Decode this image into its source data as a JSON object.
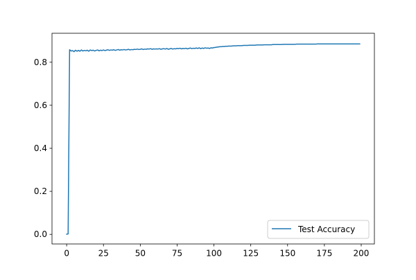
{
  "chart_data": {
    "type": "line",
    "title": "",
    "xlabel": "",
    "ylabel": "",
    "xlim": [
      -9.95,
      208.95
    ],
    "ylim": [
      -0.0445,
      0.9345
    ],
    "xticks": [
      0,
      25,
      50,
      75,
      100,
      125,
      150,
      175,
      200
    ],
    "yticks": [
      0.0,
      0.2,
      0.4,
      0.6,
      0.8
    ],
    "xtick_labels": [
      "0",
      "25",
      "50",
      "75",
      "100",
      "125",
      "150",
      "175",
      "200"
    ],
    "ytick_labels": [
      "0.0",
      "0.2",
      "0.4",
      "0.6",
      "0.8"
    ],
    "grid": false,
    "legend": {
      "position": "lower right",
      "entries": [
        "Test Accuracy"
      ]
    },
    "series": [
      {
        "name": "Test Accuracy",
        "color": "#1f77b4",
        "x": [
          0,
          1,
          2,
          3,
          4,
          5,
          6,
          7,
          8,
          9,
          10,
          11,
          12,
          13,
          14,
          15,
          16,
          17,
          18,
          19,
          20,
          21,
          22,
          23,
          24,
          25,
          26,
          27,
          28,
          29,
          30,
          31,
          32,
          33,
          34,
          35,
          36,
          37,
          38,
          39,
          40,
          41,
          42,
          43,
          44,
          45,
          46,
          47,
          48,
          49,
          50,
          51,
          52,
          53,
          54,
          55,
          56,
          57,
          58,
          59,
          60,
          61,
          62,
          63,
          64,
          65,
          66,
          67,
          68,
          69,
          70,
          71,
          72,
          73,
          74,
          75,
          76,
          77,
          78,
          79,
          80,
          81,
          82,
          83,
          84,
          85,
          86,
          87,
          88,
          89,
          90,
          91,
          92,
          93,
          94,
          95,
          96,
          97,
          98,
          99,
          100,
          101,
          102,
          103,
          104,
          105,
          106,
          107,
          108,
          109,
          110,
          111,
          112,
          113,
          114,
          115,
          116,
          117,
          118,
          119,
          120,
          121,
          122,
          123,
          124,
          125,
          126,
          127,
          128,
          129,
          130,
          131,
          132,
          133,
          134,
          135,
          136,
          137,
          138,
          139,
          140,
          141,
          142,
          143,
          144,
          145,
          146,
          147,
          148,
          149,
          150,
          151,
          152,
          153,
          154,
          155,
          156,
          157,
          158,
          159,
          160,
          161,
          162,
          163,
          164,
          165,
          166,
          167,
          168,
          169,
          170,
          171,
          172,
          173,
          174,
          175,
          176,
          177,
          178,
          179,
          180,
          181,
          182,
          183,
          184,
          185,
          186,
          187,
          188,
          189,
          190,
          191,
          192,
          193,
          194,
          195,
          196,
          197,
          198,
          199
        ],
        "y": [
          0.001,
          0.002,
          0.858,
          0.852,
          0.854,
          0.849,
          0.856,
          0.851,
          0.855,
          0.851,
          0.857,
          0.852,
          0.855,
          0.853,
          0.856,
          0.851,
          0.857,
          0.854,
          0.856,
          0.852,
          0.855,
          0.857,
          0.853,
          0.856,
          0.854,
          0.857,
          0.854,
          0.856,
          0.858,
          0.855,
          0.857,
          0.856,
          0.858,
          0.855,
          0.857,
          0.859,
          0.856,
          0.858,
          0.857,
          0.859,
          0.857,
          0.858,
          0.86,
          0.857,
          0.859,
          0.858,
          0.86,
          0.859,
          0.861,
          0.859,
          0.86,
          0.862,
          0.859,
          0.861,
          0.86,
          0.862,
          0.861,
          0.863,
          0.86,
          0.862,
          0.861,
          0.862,
          0.861,
          0.863,
          0.86,
          0.862,
          0.863,
          0.861,
          0.864,
          0.86,
          0.862,
          0.864,
          0.861,
          0.863,
          0.862,
          0.864,
          0.863,
          0.865,
          0.862,
          0.864,
          0.863,
          0.865,
          0.862,
          0.864,
          0.866,
          0.863,
          0.865,
          0.864,
          0.866,
          0.864,
          0.867,
          0.863,
          0.866,
          0.864,
          0.867,
          0.865,
          0.866,
          0.864,
          0.867,
          0.866,
          0.868,
          0.869,
          0.87,
          0.871,
          0.872,
          0.872,
          0.873,
          0.873,
          0.874,
          0.874,
          0.875,
          0.875,
          0.875,
          0.876,
          0.876,
          0.876,
          0.877,
          0.877,
          0.877,
          0.877,
          0.878,
          0.878,
          0.878,
          0.878,
          0.879,
          0.879,
          0.879,
          0.879,
          0.879,
          0.88,
          0.88,
          0.88,
          0.88,
          0.88,
          0.881,
          0.881,
          0.881,
          0.881,
          0.881,
          0.881,
          0.882,
          0.882,
          0.882,
          0.882,
          0.882,
          0.882,
          0.882,
          0.883,
          0.883,
          0.883,
          0.883,
          0.883,
          0.883,
          0.883,
          0.883,
          0.883,
          0.884,
          0.884,
          0.884,
          0.884,
          0.884,
          0.884,
          0.884,
          0.884,
          0.884,
          0.884,
          0.884,
          0.884,
          0.884,
          0.884,
          0.885,
          0.885,
          0.885,
          0.885,
          0.885,
          0.885,
          0.885,
          0.885,
          0.885,
          0.885,
          0.885,
          0.885,
          0.885,
          0.885,
          0.885,
          0.885,
          0.885,
          0.885,
          0.885,
          0.885,
          0.885,
          0.885,
          0.885,
          0.885,
          0.885,
          0.885,
          0.885,
          0.885,
          0.885,
          0.885
        ]
      }
    ]
  }
}
